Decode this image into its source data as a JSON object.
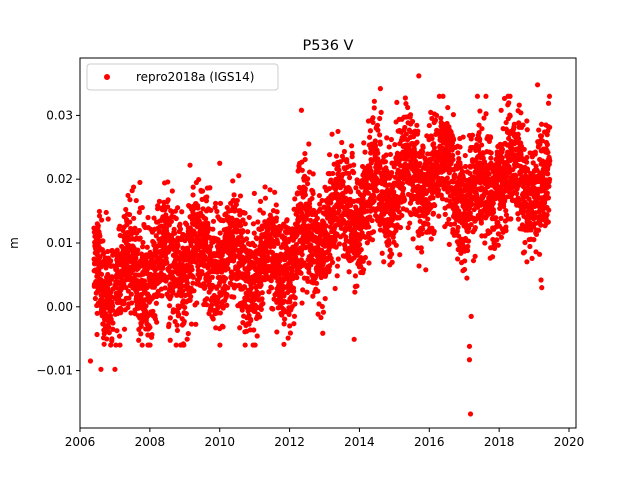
{
  "chart_data": {
    "type": "scatter",
    "title": "P536 V",
    "xlabel": "",
    "ylabel": "m",
    "xlim": [
      2006.0,
      2020.2
    ],
    "ylim": [
      -0.019,
      0.039
    ],
    "x_ticks": [
      2006,
      2008,
      2010,
      2012,
      2014,
      2016,
      2018,
      2020
    ],
    "x_tick_labels": [
      "2006",
      "2008",
      "2010",
      "2012",
      "2014",
      "2016",
      "2018",
      "2020"
    ],
    "y_ticks": [
      -0.01,
      0.0,
      0.01,
      0.02,
      0.03
    ],
    "y_tick_labels": [
      "−0.01",
      "0.00",
      "0.01",
      "0.02",
      "0.03"
    ],
    "grid": false,
    "legend": {
      "placement": "upper-left",
      "entries": [
        {
          "label": "repro2018a (IGS14)",
          "color": "#ff0000",
          "marker": "dot"
        }
      ]
    },
    "series": [
      {
        "name": "repro2018a (IGS14)",
        "color": "#ff0000",
        "trend_points": [
          {
            "x": 2006.4,
            "y": 0.004
          },
          {
            "x": 2007.0,
            "y": 0.0045
          },
          {
            "x": 2008.0,
            "y": 0.0055
          },
          {
            "x": 2009.0,
            "y": 0.0075
          },
          {
            "x": 2010.0,
            "y": 0.008
          },
          {
            "x": 2011.0,
            "y": 0.0065
          },
          {
            "x": 2012.0,
            "y": 0.0085
          },
          {
            "x": 2013.0,
            "y": 0.012
          },
          {
            "x": 2014.0,
            "y": 0.016
          },
          {
            "x": 2015.0,
            "y": 0.0195
          },
          {
            "x": 2016.0,
            "y": 0.021
          },
          {
            "x": 2016.5,
            "y": 0.0205
          },
          {
            "x": 2017.0,
            "y": 0.017
          },
          {
            "x": 2017.5,
            "y": 0.0175
          },
          {
            "x": 2018.0,
            "y": 0.021
          },
          {
            "x": 2019.0,
            "y": 0.0195
          },
          {
            "x": 2019.45,
            "y": 0.018
          }
        ],
        "approx_daily_scatter_std": 0.0045,
        "annual_amplitude": 0.003,
        "notable_points": [
          {
            "x": 2006.3,
            "y": -0.0085
          },
          {
            "x": 2006.6,
            "y": -0.0098
          },
          {
            "x": 2007.0,
            "y": -0.0098
          },
          {
            "x": 2009.1,
            "y": -0.0042
          },
          {
            "x": 2009.15,
            "y": 0.0222
          },
          {
            "x": 2010.0,
            "y": 0.0225
          },
          {
            "x": 2014.6,
            "y": 0.0342
          },
          {
            "x": 2015.7,
            "y": 0.0362
          },
          {
            "x": 2015.9,
            "y": 0.0058
          },
          {
            "x": 2017.2,
            "y": -0.0015
          },
          {
            "x": 2017.15,
            "y": -0.0062
          },
          {
            "x": 2017.15,
            "y": -0.0083
          },
          {
            "x": 2017.18,
            "y": -0.0168
          },
          {
            "x": 2019.1,
            "y": 0.0348
          },
          {
            "x": 2019.2,
            "y": 0.0042
          },
          {
            "x": 2019.22,
            "y": 0.003
          }
        ]
      }
    ]
  }
}
